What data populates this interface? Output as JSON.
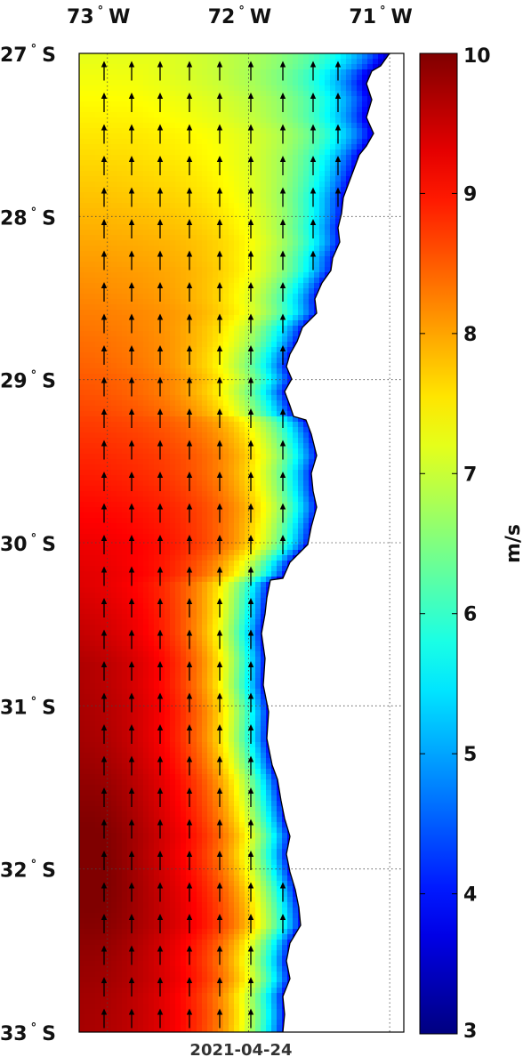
{
  "map": {
    "date": "2021-04-24",
    "units": "m/s",
    "lon_ticks": [
      {
        "value": -73,
        "num": "73",
        "hemi": "W"
      },
      {
        "value": -72,
        "num": "72",
        "hemi": "W"
      },
      {
        "value": -71,
        "num": "71",
        "hemi": "W"
      }
    ],
    "lat_ticks": [
      {
        "value": -27,
        "num": "27",
        "hemi": "S"
      },
      {
        "value": -28,
        "num": "28",
        "hemi": "S"
      },
      {
        "value": -29,
        "num": "29",
        "hemi": "S"
      },
      {
        "value": -30,
        "num": "30",
        "hemi": "S"
      },
      {
        "value": -31,
        "num": "31",
        "hemi": "S"
      },
      {
        "value": -32,
        "num": "32",
        "hemi": "S"
      },
      {
        "value": -33,
        "num": "33",
        "hemi": "S"
      }
    ],
    "lon_range": [
      -73.2,
      -70.9
    ],
    "lat_range": [
      -33,
      -27
    ],
    "colorbar": {
      "min": 3,
      "max": 10,
      "ticks": [
        3,
        4,
        5,
        6,
        7,
        8,
        9,
        10
      ],
      "colormap": "jet"
    },
    "land_color": "#ffffff",
    "arrow_color": "#000000",
    "gridlines": "dotted"
  }
}
